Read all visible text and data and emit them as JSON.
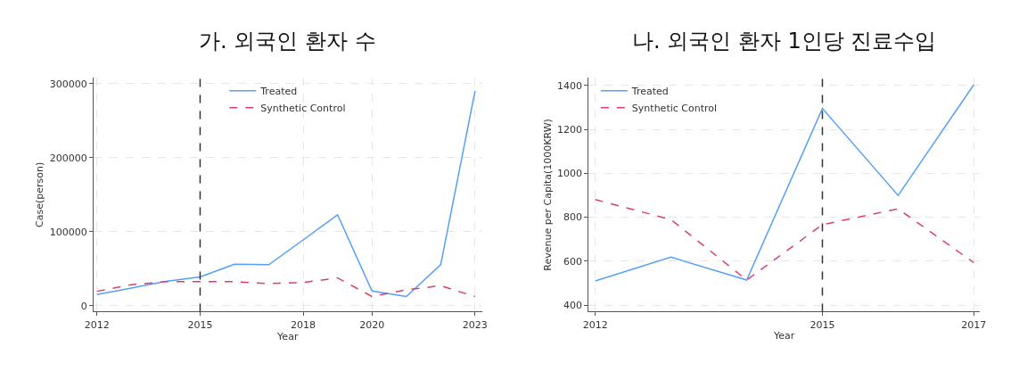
{
  "chart_data": [
    {
      "type": "line",
      "title": "가. 외국인 환자 수",
      "xlabel": "Year",
      "ylabel": "Case(person)",
      "x": [
        2012,
        2013,
        2014,
        2015,
        2016,
        2017,
        2018,
        2019,
        2020,
        2021,
        2022,
        2023
      ],
      "series": [
        {
          "name": "Treated",
          "color": "#55a0f5",
          "line_style": "solid",
          "values": [
            15000,
            24000,
            33000,
            39000,
            56000,
            55500,
            89000,
            123000,
            20000,
            12500,
            55500,
            290500
          ]
        },
        {
          "name": "Synthetic Control",
          "color": "#dc3d74",
          "line_style": "dashed",
          "values": [
            19500,
            28500,
            32500,
            32500,
            32500,
            30000,
            31500,
            37500,
            12500,
            21500,
            27000,
            12500
          ]
        }
      ],
      "xlim": [
        2011.9,
        2023.2
      ],
      "xticks": [
        2012,
        2015,
        2018,
        2020,
        2023
      ],
      "ylim": [
        -8000,
        308000
      ],
      "yticks": [
        0,
        100000,
        200000,
        300000
      ],
      "ref_lines": [
        {
          "axis": "x",
          "value": 2015,
          "color": "#333333",
          "line_style": "dashed"
        }
      ],
      "grid": true,
      "legend": "top",
      "marker": "none"
    },
    {
      "type": "line",
      "title": "나. 외국인 환자 1인당 진료수입",
      "xlabel": "Year",
      "ylabel": "Revenue per Capita(1000KRW)",
      "x": [
        2012,
        2013,
        2014,
        2015,
        2016,
        2017
      ],
      "series": [
        {
          "name": "Treated",
          "color": "#55a0f5",
          "line_style": "solid",
          "values": [
            510,
            618,
            514,
            1295,
            899,
            1403
          ]
        },
        {
          "name": "Synthetic Control",
          "color": "#dc3d74",
          "line_style": "dashed",
          "values": [
            880,
            789,
            514,
            766,
            838,
            593
          ]
        }
      ],
      "xlim": [
        2011.91,
        2017.08
      ],
      "xticks": [
        2012,
        2015,
        2017
      ],
      "ylim": [
        370,
        1434
      ],
      "yticks": [
        400,
        600,
        800,
        1000,
        1200,
        1400
      ],
      "ref_lines": [
        {
          "axis": "x",
          "value": 2015,
          "color": "#333333",
          "line_style": "dashed"
        }
      ],
      "grid": true,
      "legend": "top left",
      "marker": "none"
    }
  ]
}
